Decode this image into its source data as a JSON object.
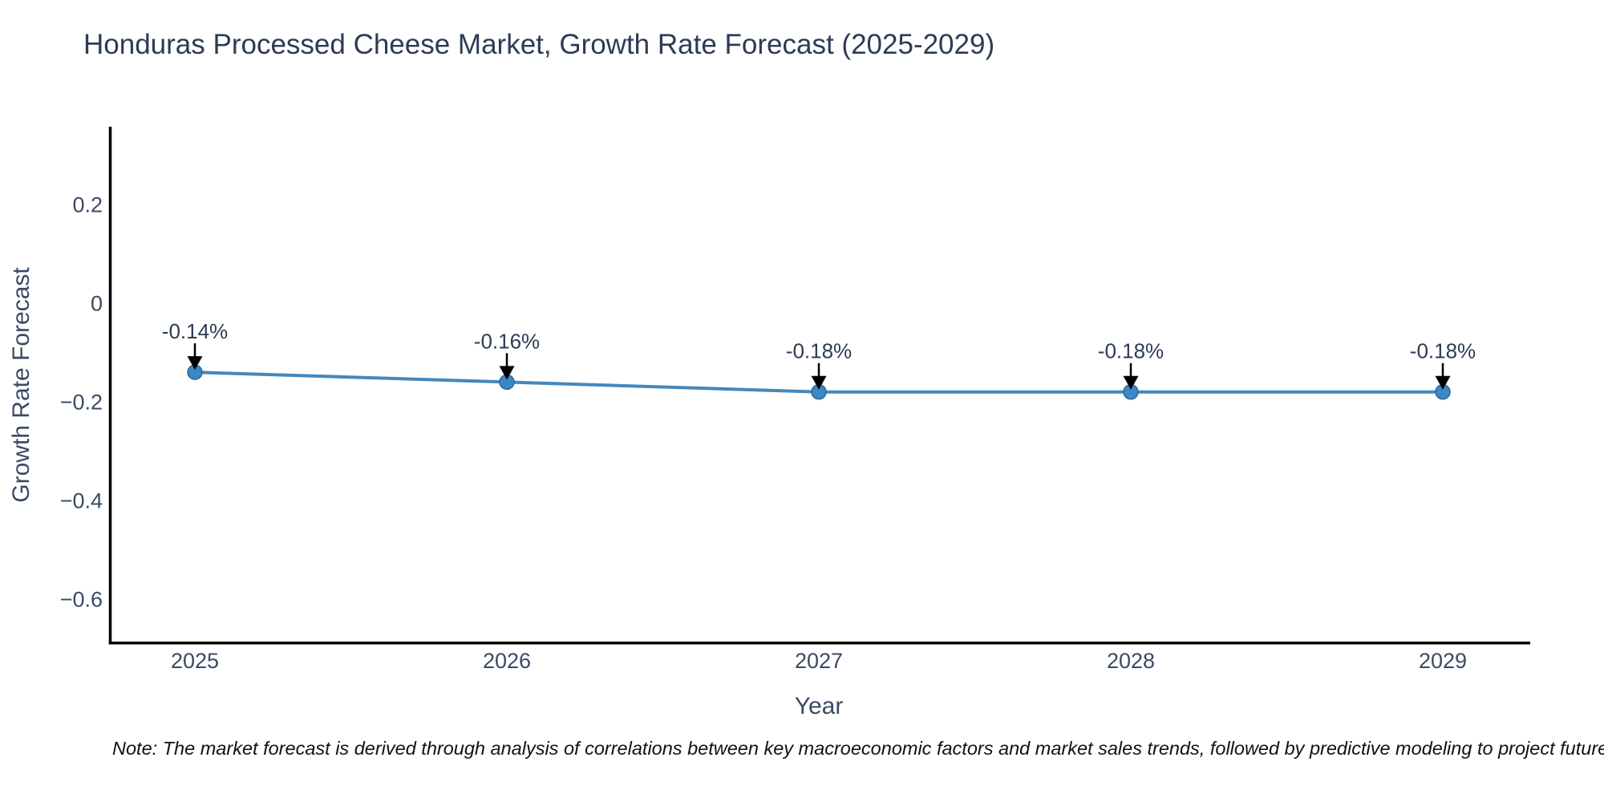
{
  "header": {
    "title": "Honduras Processed Cheese Market, Growth Rate Forecast (2025-2029)"
  },
  "chart_data": {
    "type": "line",
    "title": "Honduras Processed Cheese Market, Growth Rate Forecast (2025-2029)",
    "xlabel": "Year",
    "ylabel": "Growth Rate Forecast",
    "x": [
      2025,
      2026,
      2027,
      2028,
      2029
    ],
    "categories": [
      "2025",
      "2026",
      "2027",
      "2028",
      "2029"
    ],
    "values": [
      -0.14,
      -0.16,
      -0.18,
      -0.18,
      -0.18
    ],
    "point_labels": [
      "-0.14%",
      "-0.16%",
      "-0.18%",
      "-0.18%",
      "-0.18%"
    ],
    "yticks": {
      "values": [
        0.2,
        0,
        -0.2,
        -0.4,
        -0.6
      ],
      "labels": [
        "0.2",
        "0",
        "−0.2",
        "−0.4",
        "−0.6"
      ]
    },
    "ylim": [
      -0.69,
      0.36
    ],
    "grid": false,
    "legend": "none",
    "marker": "circle-with-down-arrow-annotation",
    "colors": {
      "line": "#4587bb",
      "marker_fill": "#3d87c5",
      "marker_edge": "#2e679c",
      "axis_line": "#000000",
      "title_text": "#2c3b57",
      "tick_text": "#3a4a66",
      "annotation_text": "#2c3b57",
      "annotation_arrow": "#000000",
      "background": "#ffffff"
    }
  },
  "footer": {
    "note": "Note: The market forecast is derived through analysis of correlations between key macroeconomic factors and market sales trends, followed by predictive modeling to project future sales"
  }
}
